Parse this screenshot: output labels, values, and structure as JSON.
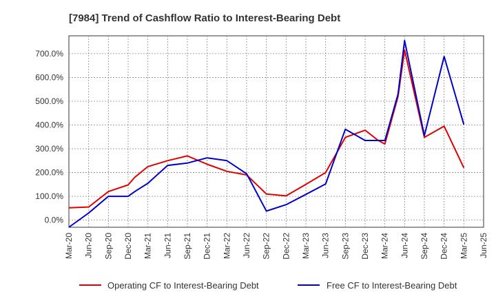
{
  "chart_data": {
    "type": "line",
    "title": "[7984]  Trend of Cashflow Ratio to Interest-Bearing Debt",
    "xlabel": "",
    "ylabel": "",
    "x_ticks": [
      "Mar-20",
      "Jun-20",
      "Sep-20",
      "Dec-20",
      "Mar-21",
      "Jun-21",
      "Sep-21",
      "Dec-21",
      "Mar-22",
      "Jun-22",
      "Sep-22",
      "Dec-22",
      "Mar-23",
      "Jun-23",
      "Sep-23",
      "Dec-23",
      "Mar-24",
      "Jun-24",
      "Sep-24",
      "Dec-24",
      "Mar-25",
      "Jun-25"
    ],
    "y_ticks": [
      "0.0%",
      "100.0%",
      "200.0%",
      "300.0%",
      "400.0%",
      "500.0%",
      "600.0%",
      "700.0%"
    ],
    "y_tick_values": [
      0,
      100,
      200,
      300,
      400,
      500,
      600,
      700
    ],
    "ylim": [
      -30,
      775
    ],
    "grid": true,
    "legend_position": "bottom",
    "x": [
      "Mar-20",
      "Jun-20",
      "Sep-20",
      "Dec-20",
      "Jan-21",
      "Mar-21",
      "Jun-21",
      "Sep-21",
      "Dec-21",
      "Mar-22",
      "Jun-22",
      "Sep-22",
      "Dec-22",
      "Mar-23",
      "Jun-23",
      "Sep-23",
      "Dec-23",
      "Feb-24",
      "Mar-24",
      "May-24",
      "Jun-24",
      "Sep-24",
      "Dec-24",
      "Mar-25"
    ],
    "series": [
      {
        "name": "Operating CF to Interest-Bearing Debt",
        "color": "#e00000",
        "values": [
          52,
          55,
          120,
          148,
          180,
          225,
          250,
          270,
          235,
          205,
          190,
          110,
          102,
          150,
          200,
          348,
          378,
          335,
          320,
          520,
          715,
          348,
          395,
          220
        ]
      },
      {
        "name": "Free CF to Interest-Bearing Debt",
        "color": "#0000cc",
        "values": [
          -30,
          30,
          100,
          100,
          120,
          155,
          230,
          240,
          262,
          250,
          195,
          38,
          65,
          108,
          152,
          382,
          335,
          335,
          335,
          530,
          755,
          355,
          688,
          402
        ]
      }
    ]
  }
}
